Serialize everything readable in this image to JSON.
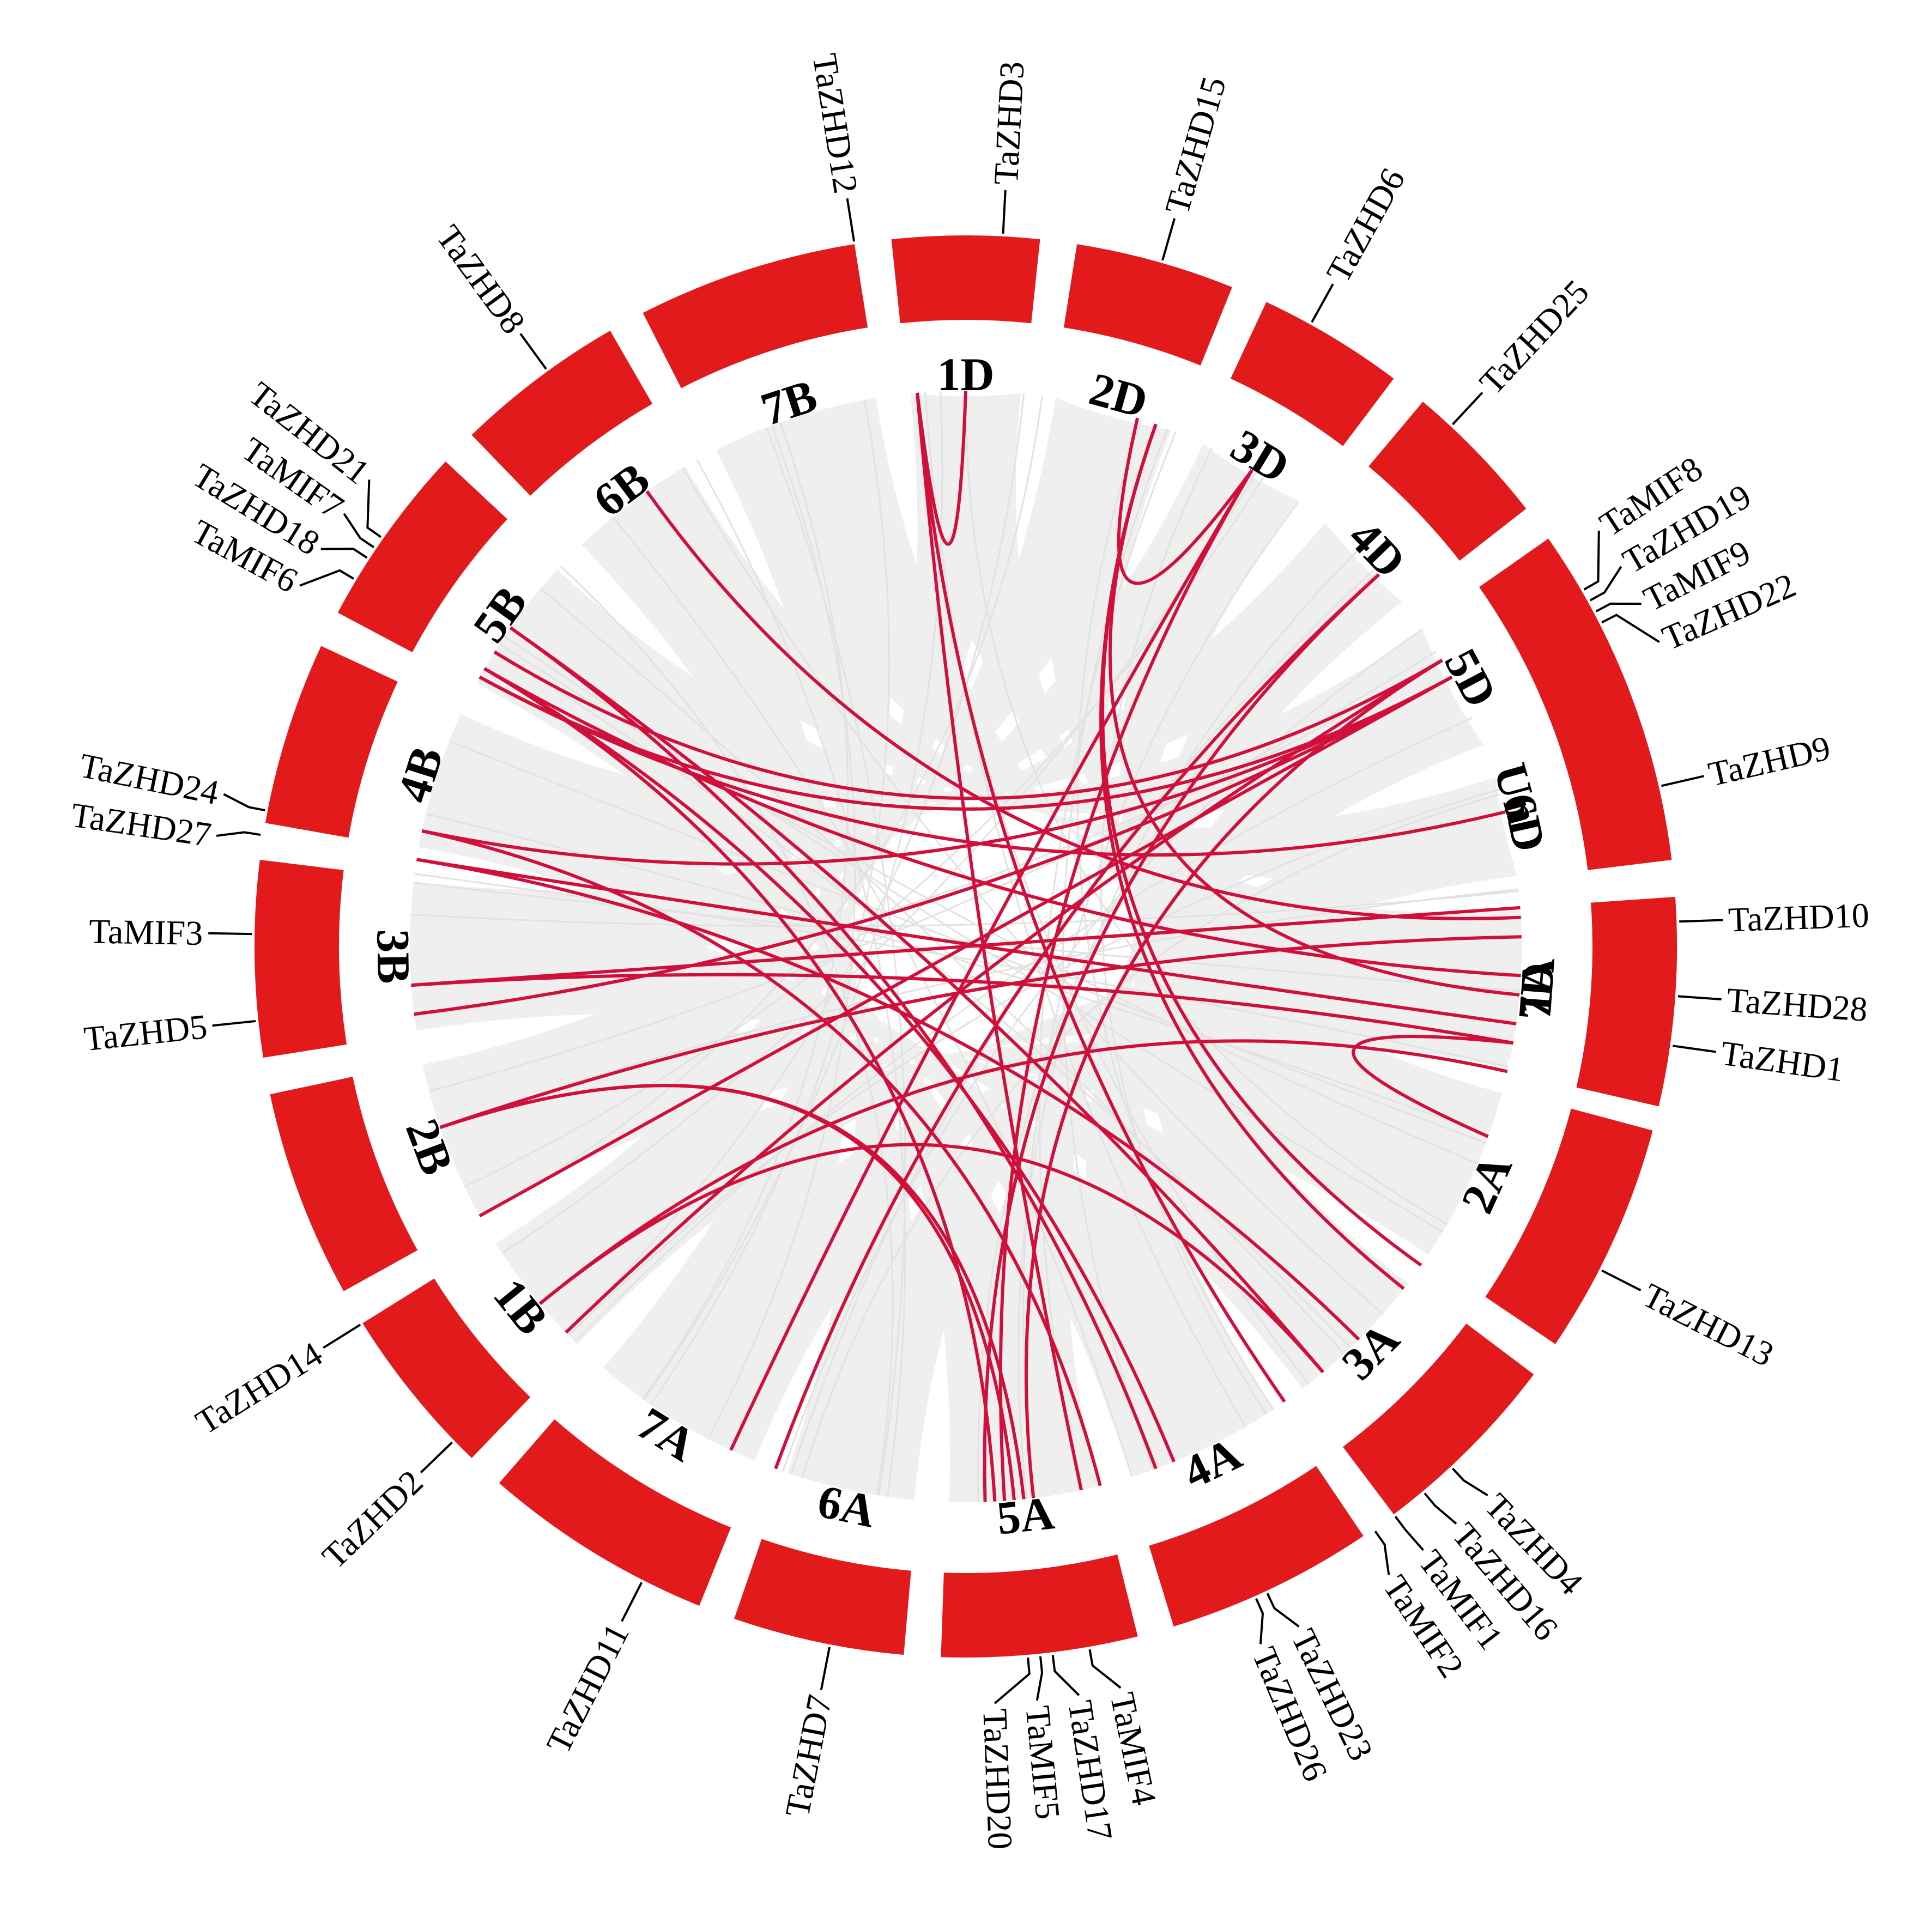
{
  "diagram": {
    "type": "circos",
    "ring_color": "#e31a1c",
    "link_color": "#d0103a",
    "background_link_color": "#efefef"
  },
  "chromosomes": [
    {
      "name": "1A",
      "start": 86,
      "end": 102
    },
    {
      "name": "2A",
      "start": 105,
      "end": 124
    },
    {
      "name": "3A",
      "start": 127,
      "end": 143
    },
    {
      "name": "4A",
      "start": 146,
      "end": 163
    },
    {
      "name": "5A",
      "start": 166,
      "end": 182
    },
    {
      "name": "6A",
      "start": 185,
      "end": 199
    },
    {
      "name": "7A",
      "start": 202,
      "end": 221
    },
    {
      "name": "1B",
      "start": 224,
      "end": 238
    },
    {
      "name": "2B",
      "start": 241,
      "end": 258
    },
    {
      "name": "3B",
      "start": 261,
      "end": 277
    },
    {
      "name": "4B",
      "start": 280,
      "end": 295
    },
    {
      "name": "5B",
      "start": 298,
      "end": 313
    },
    {
      "name": "6B",
      "start": 316,
      "end": 330
    },
    {
      "name": "7B",
      "start": 333,
      "end": 351
    },
    {
      "name": "1D",
      "start": 354,
      "end": 366
    },
    {
      "name": "2D",
      "start": 369,
      "end": 382
    },
    {
      "name": "3D",
      "start": 385,
      "end": 397
    },
    {
      "name": "4D",
      "start": 400,
      "end": 412
    },
    {
      "name": "5D",
      "start": 415,
      "end": 429
    },
    {
      "name": "6D",
      "start": 432,
      "end": 443
    },
    {
      "name": "7D",
      "start": 446,
      "end": 463
    },
    {
      "name": "Un",
      "start": 66,
      "end": 83
    }
  ],
  "genes": [
    {
      "name": "TaZHD10",
      "angle": 88
    },
    {
      "name": "TaZHD1",
      "angle": 98
    },
    {
      "name": "TaZHD13",
      "angle": 117
    },
    {
      "name": "TaZHD4",
      "angle": 137
    },
    {
      "name": "TaZHD16",
      "angle": 140
    },
    {
      "name": "TaMIF1",
      "angle": 143
    },
    {
      "name": "TaMIF2",
      "angle": 145
    },
    {
      "name": "TaZHD23",
      "angle": 155
    },
    {
      "name": "TaZHD26",
      "angle": 156
    },
    {
      "name": "TaMIF4",
      "angle": 170
    },
    {
      "name": "TaZHD17",
      "angle": 173
    },
    {
      "name": "TaMIF5",
      "angle": 174
    },
    {
      "name": "TaZHD20",
      "angle": 175
    },
    {
      "name": "TaZHD7",
      "angle": 191
    },
    {
      "name": "TaZHD11",
      "angle": 207
    },
    {
      "name": "TaZHD2",
      "angle": 226
    },
    {
      "name": "TaZHD14",
      "angle": 238
    },
    {
      "name": "TaZHD5",
      "angle": 264
    },
    {
      "name": "TaMIF3",
      "angle": 271
    },
    {
      "name": "TaZHD27",
      "angle": 279
    },
    {
      "name": "TaZHD24",
      "angle": 281
    },
    {
      "name": "TaMIF6",
      "angle": 301
    },
    {
      "name": "TaZHD18",
      "angle": 303
    },
    {
      "name": "TaMIF7",
      "angle": 304
    },
    {
      "name": "TaZHD21",
      "angle": 305
    },
    {
      "name": "TaZHD8",
      "angle": 324
    },
    {
      "name": "TaZHD12",
      "angle": 351
    },
    {
      "name": "TaZHD3",
      "angle": 363
    },
    {
      "name": "TaZHD15",
      "angle": 376
    },
    {
      "name": "TaZHD6",
      "angle": 389
    },
    {
      "name": "TaZHD25",
      "angle": 403
    },
    {
      "name": "TaMIF8",
      "angle": 420
    },
    {
      "name": "TaZHD19",
      "angle": 421
    },
    {
      "name": "TaMIF9",
      "angle": 422
    },
    {
      "name": "TaZHD22",
      "angle": 423
    },
    {
      "name": "TaZHD9",
      "angle": 437
    },
    {
      "name": "TaZHD28",
      "angle": 454
    }
  ],
  "collinear_links": [
    [
      380,
      95
    ],
    [
      380,
      125
    ],
    [
      380,
      128
    ],
    [
      355,
      360
    ],
    [
      355,
      168
    ],
    [
      355,
      145
    ],
    [
      391,
      378
    ],
    [
      391,
      176
    ],
    [
      391,
      205
    ],
    [
      408,
      200
    ],
    [
      408,
      178
    ],
    [
      421,
      282
    ],
    [
      421,
      299
    ],
    [
      421,
      241
    ],
    [
      421,
      263
    ],
    [
      419,
      302
    ],
    [
      419,
      226
    ],
    [
      419,
      173
    ],
    [
      436,
      299
    ],
    [
      300,
      158
    ],
    [
      300,
      93
    ],
    [
      300,
      177
    ],
    [
      305,
      140
    ],
    [
      305,
      160
    ],
    [
      279,
      135
    ],
    [
      279,
      98
    ],
    [
      282,
      166
    ],
    [
      266,
      100
    ],
    [
      266,
      86
    ],
    [
      251,
      89
    ],
    [
      251,
      174
    ],
    [
      251,
      175
    ],
    [
      230,
      103
    ],
    [
      230,
      140
    ],
    [
      100,
      110
    ],
    [
      325,
      87
    ]
  ]
}
